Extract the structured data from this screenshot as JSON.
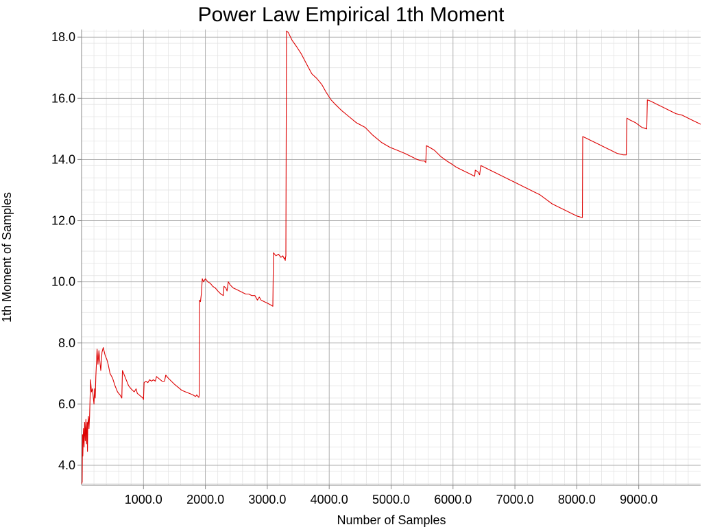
{
  "chart_data": {
    "type": "line",
    "title": "Power Law Empirical 1th Moment",
    "xlabel": "Number of Samples",
    "ylabel": "1th Moment of Samples",
    "xlim": [
      0,
      10000
    ],
    "ylim": [
      3.35,
      18.25
    ],
    "x_ticks": [
      1000,
      2000,
      3000,
      4000,
      5000,
      6000,
      7000,
      8000,
      9000
    ],
    "x_tick_labels": [
      "1000.0",
      "2000.0",
      "3000.0",
      "4000.0",
      "5000.0",
      "6000.0",
      "7000.0",
      "8000.0",
      "9000.0"
    ],
    "y_ticks": [
      4,
      6,
      8,
      10,
      12,
      14,
      16,
      18
    ],
    "y_tick_labels": [
      "4.0",
      "6.0",
      "8.0",
      "10.0",
      "12.0",
      "14.0",
      "16.0",
      "18.0"
    ],
    "grid": true,
    "minor_grid": true,
    "line_color": "#dd0000",
    "series": [
      {
        "points": [
          [
            1,
            3.4
          ],
          [
            10,
            3.45
          ],
          [
            15,
            5.0
          ],
          [
            20,
            4.3
          ],
          [
            30,
            5.2
          ],
          [
            40,
            4.6
          ],
          [
            50,
            5.4
          ],
          [
            60,
            4.8
          ],
          [
            70,
            5.5
          ],
          [
            80,
            4.7
          ],
          [
            90,
            5.4
          ],
          [
            95,
            4.45
          ],
          [
            100,
            5.3
          ],
          [
            110,
            5.6
          ],
          [
            120,
            5.2
          ],
          [
            130,
            5.6
          ],
          [
            145,
            6.8
          ],
          [
            160,
            6.4
          ],
          [
            175,
            6.5
          ],
          [
            190,
            6.2
          ],
          [
            200,
            6.0
          ],
          [
            210,
            6.5
          ],
          [
            220,
            6.2
          ],
          [
            230,
            6.9
          ],
          [
            250,
            7.8
          ],
          [
            265,
            7.3
          ],
          [
            280,
            7.75
          ],
          [
            290,
            7.5
          ],
          [
            310,
            7.1
          ],
          [
            330,
            7.7
          ],
          [
            350,
            7.85
          ],
          [
            380,
            7.6
          ],
          [
            410,
            7.45
          ],
          [
            430,
            7.3
          ],
          [
            460,
            7.0
          ],
          [
            500,
            6.85
          ],
          [
            540,
            6.6
          ],
          [
            580,
            6.4
          ],
          [
            620,
            6.3
          ],
          [
            650,
            6.2
          ],
          [
            660,
            7.1
          ],
          [
            690,
            6.95
          ],
          [
            720,
            6.8
          ],
          [
            760,
            6.6
          ],
          [
            800,
            6.5
          ],
          [
            850,
            6.4
          ],
          [
            880,
            6.5
          ],
          [
            900,
            6.35
          ],
          [
            930,
            6.3
          ],
          [
            960,
            6.25
          ],
          [
            990,
            6.2
          ],
          [
            1000,
            6.15
          ],
          [
            1010,
            6.7
          ],
          [
            1040,
            6.75
          ],
          [
            1070,
            6.7
          ],
          [
            1100,
            6.8
          ],
          [
            1130,
            6.75
          ],
          [
            1160,
            6.8
          ],
          [
            1190,
            6.75
          ],
          [
            1210,
            6.9
          ],
          [
            1240,
            6.85
          ],
          [
            1270,
            6.8
          ],
          [
            1300,
            6.75
          ],
          [
            1340,
            6.75
          ],
          [
            1360,
            6.95
          ],
          [
            1400,
            6.85
          ],
          [
            1450,
            6.75
          ],
          [
            1500,
            6.65
          ],
          [
            1560,
            6.55
          ],
          [
            1620,
            6.45
          ],
          [
            1680,
            6.4
          ],
          [
            1740,
            6.35
          ],
          [
            1800,
            6.3
          ],
          [
            1840,
            6.25
          ],
          [
            1860,
            6.3
          ],
          [
            1880,
            6.25
          ],
          [
            1895,
            6.22
          ],
          [
            1900,
            6.3
          ],
          [
            1905,
            9.4
          ],
          [
            1920,
            9.35
          ],
          [
            1935,
            9.6
          ],
          [
            1950,
            10.1
          ],
          [
            1970,
            10.0
          ],
          [
            2000,
            10.1
          ],
          [
            2040,
            10.0
          ],
          [
            2080,
            9.95
          ],
          [
            2120,
            9.85
          ],
          [
            2160,
            9.8
          ],
          [
            2200,
            9.7
          ],
          [
            2250,
            9.6
          ],
          [
            2290,
            9.55
          ],
          [
            2300,
            9.85
          ],
          [
            2330,
            9.8
          ],
          [
            2350,
            9.7
          ],
          [
            2370,
            10.0
          ],
          [
            2400,
            9.9
          ],
          [
            2450,
            9.8
          ],
          [
            2500,
            9.75
          ],
          [
            2550,
            9.7
          ],
          [
            2600,
            9.65
          ],
          [
            2650,
            9.6
          ],
          [
            2700,
            9.6
          ],
          [
            2750,
            9.55
          ],
          [
            2800,
            9.55
          ],
          [
            2840,
            9.4
          ],
          [
            2870,
            9.5
          ],
          [
            2900,
            9.4
          ],
          [
            2950,
            9.35
          ],
          [
            3000,
            9.3
          ],
          [
            3050,
            9.25
          ],
          [
            3090,
            9.2
          ],
          [
            3100,
            10.95
          ],
          [
            3140,
            10.85
          ],
          [
            3180,
            10.9
          ],
          [
            3220,
            10.8
          ],
          [
            3250,
            10.85
          ],
          [
            3275,
            10.75
          ],
          [
            3280,
            10.78
          ],
          [
            3290,
            10.7
          ],
          [
            3295,
            10.8
          ],
          [
            3300,
            10.85
          ],
          [
            3310,
            18.2
          ],
          [
            3340,
            18.15
          ],
          [
            3400,
            17.9
          ],
          [
            3470,
            17.7
          ],
          [
            3550,
            17.45
          ],
          [
            3640,
            17.1
          ],
          [
            3720,
            16.8
          ],
          [
            3800,
            16.65
          ],
          [
            3880,
            16.45
          ],
          [
            3950,
            16.2
          ],
          [
            4030,
            15.95
          ],
          [
            4100,
            15.8
          ],
          [
            4200,
            15.6
          ],
          [
            4320,
            15.4
          ],
          [
            4440,
            15.2
          ],
          [
            4580,
            15.05
          ],
          [
            4700,
            14.8
          ],
          [
            4850,
            14.55
          ],
          [
            4980,
            14.4
          ],
          [
            5100,
            14.3
          ],
          [
            5220,
            14.2
          ],
          [
            5320,
            14.1
          ],
          [
            5420,
            14.0
          ],
          [
            5500,
            13.95
          ],
          [
            5540,
            13.95
          ],
          [
            5560,
            13.9
          ],
          [
            5570,
            14.45
          ],
          [
            5620,
            14.4
          ],
          [
            5700,
            14.3
          ],
          [
            5800,
            14.1
          ],
          [
            5900,
            13.95
          ],
          [
            5980,
            13.85
          ],
          [
            6050,
            13.75
          ],
          [
            6150,
            13.65
          ],
          [
            6250,
            13.55
          ],
          [
            6350,
            13.45
          ],
          [
            6360,
            13.65
          ],
          [
            6400,
            13.6
          ],
          [
            6430,
            13.5
          ],
          [
            6450,
            13.8
          ],
          [
            6500,
            13.75
          ],
          [
            6600,
            13.65
          ],
          [
            6700,
            13.55
          ],
          [
            6800,
            13.45
          ],
          [
            6900,
            13.35
          ],
          [
            7000,
            13.25
          ],
          [
            7100,
            13.15
          ],
          [
            7200,
            13.05
          ],
          [
            7300,
            12.95
          ],
          [
            7400,
            12.85
          ],
          [
            7500,
            12.7
          ],
          [
            7600,
            12.55
          ],
          [
            7700,
            12.45
          ],
          [
            7800,
            12.35
          ],
          [
            7900,
            12.25
          ],
          [
            8000,
            12.15
          ],
          [
            8090,
            12.1
          ],
          [
            8095,
            14.75
          ],
          [
            8150,
            14.7
          ],
          [
            8250,
            14.6
          ],
          [
            8350,
            14.5
          ],
          [
            8450,
            14.4
          ],
          [
            8550,
            14.3
          ],
          [
            8650,
            14.2
          ],
          [
            8750,
            14.15
          ],
          [
            8800,
            14.15
          ],
          [
            8810,
            15.35
          ],
          [
            8850,
            15.3
          ],
          [
            8950,
            15.2
          ],
          [
            9050,
            15.05
          ],
          [
            9130,
            15.0
          ],
          [
            9140,
            15.95
          ],
          [
            9200,
            15.9
          ],
          [
            9300,
            15.8
          ],
          [
            9400,
            15.7
          ],
          [
            9500,
            15.6
          ],
          [
            9600,
            15.5
          ],
          [
            9700,
            15.45
          ],
          [
            9800,
            15.35
          ],
          [
            9900,
            15.25
          ],
          [
            10000,
            15.15
          ]
        ]
      }
    ]
  }
}
